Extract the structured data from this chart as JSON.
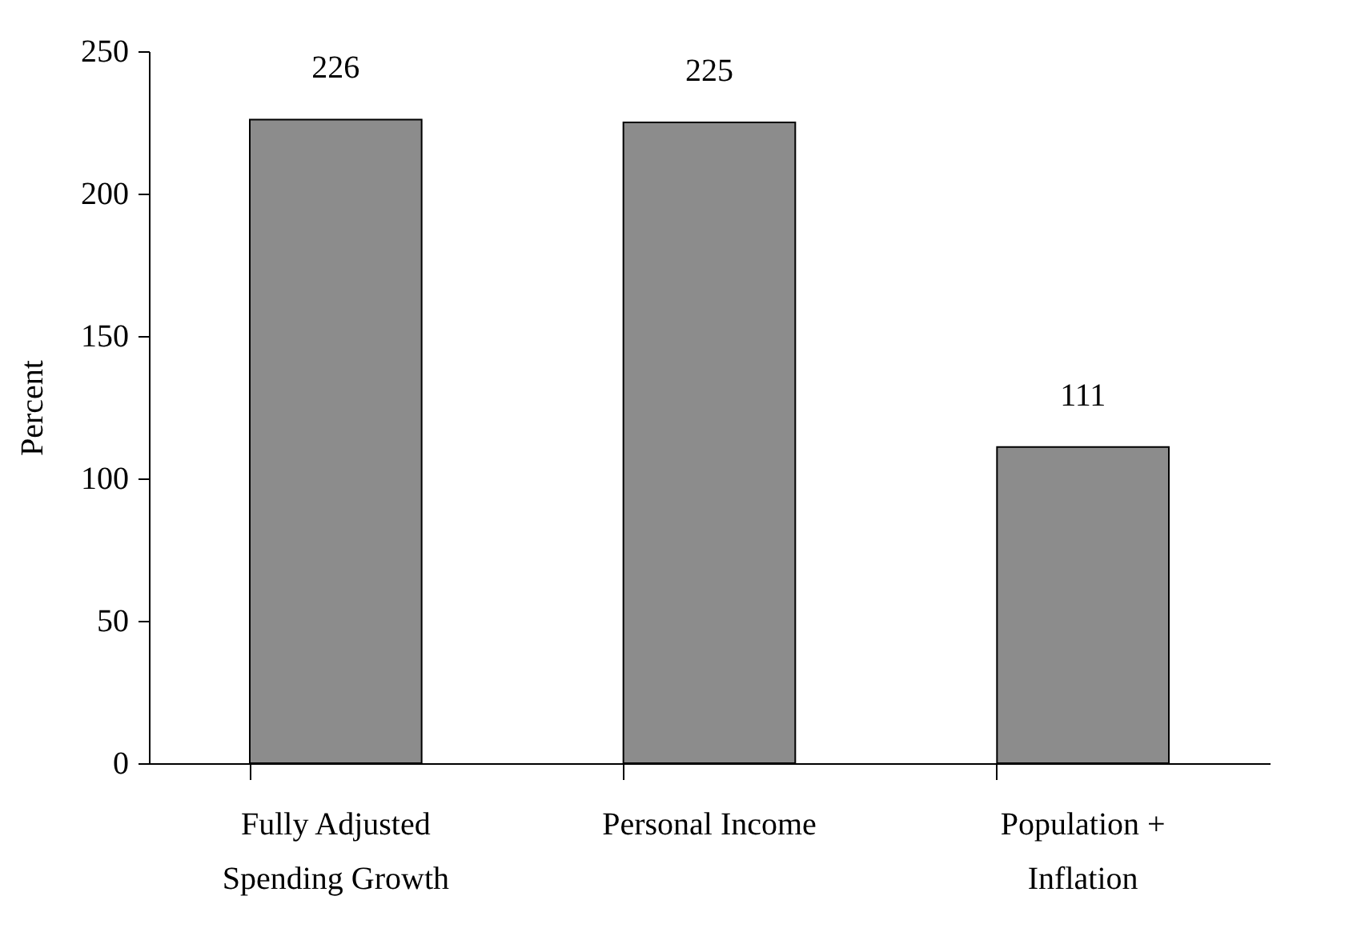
{
  "chart_data": {
    "type": "bar",
    "ylabel": "Percent",
    "categories": [
      "Fully Adjusted Spending Growth",
      "Personal Income",
      "Population + Inflation"
    ],
    "values": [
      226,
      225,
      111
    ],
    "color": "#8c8c8c",
    "ylim": [
      0,
      250
    ],
    "yticks": [
      0,
      50,
      100,
      150,
      200,
      250
    ],
    "grid": false,
    "data_labels": true
  }
}
